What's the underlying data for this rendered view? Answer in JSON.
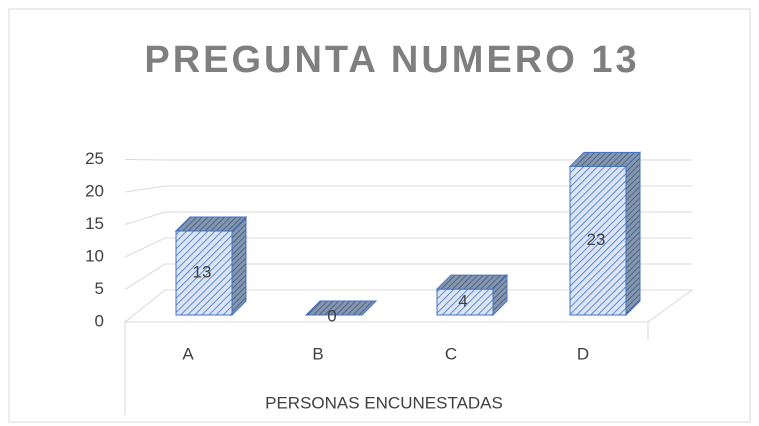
{
  "chart_data": {
    "type": "bar3d",
    "title": "PREGUNTA NUMERO 13",
    "categories": [
      "A",
      "B",
      "C",
      "D"
    ],
    "values": [
      13,
      0,
      4,
      23
    ],
    "x_label": "PERSONAS ENCUNESTADAS",
    "color": "#4472c4",
    "ylim": [
      0,
      25
    ],
    "yticks": [
      0,
      5,
      10,
      15,
      20,
      25
    ],
    "grid": true
  }
}
